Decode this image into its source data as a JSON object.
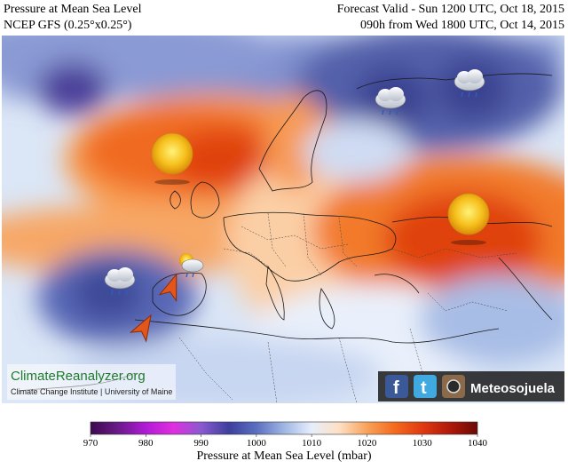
{
  "header": {
    "title_left": "Pressure at Mean Sea Level",
    "subtitle_left": "NCEP GFS (0.25°x0.25°)",
    "title_right": "Forecast Valid - Sun 1200 UTC, Oct 18, 2015",
    "subtitle_right": "090h from Wed 1800 UTC, Oct 14, 2015"
  },
  "branding": {
    "site_name": "ClimateReanalyzer.org",
    "site_sub": "Climate Change Institute | University of Maine",
    "social_name": "Meteosojuela"
  },
  "map": {
    "weather_icons": [
      "cloud-rain-icon",
      "cloud-rain-icon",
      "sun-icon",
      "sun-icon",
      "cloud-rain-icon",
      "sun-cloud-icon"
    ],
    "arrows": [
      "arrow-up-icon",
      "arrow-up-icon"
    ]
  },
  "colorbar": {
    "label": "Pressure at Mean Sea Level (mbar)",
    "ticks": [
      "970",
      "980",
      "990",
      "1000",
      "1010",
      "1020",
      "1030",
      "1040"
    ],
    "range": [
      970,
      1040
    ],
    "stops": [
      "#3d0a4c",
      "#6a1a8a",
      "#b11bd6",
      "#e02ee0",
      "#8a5ad0",
      "#3d3f9e",
      "#5b6fc0",
      "#9fb6e3",
      "#e6eefb",
      "#fde0c4",
      "#f9a25a",
      "#f46a1f",
      "#e03a10",
      "#b0180a",
      "#6a0a05"
    ]
  }
}
